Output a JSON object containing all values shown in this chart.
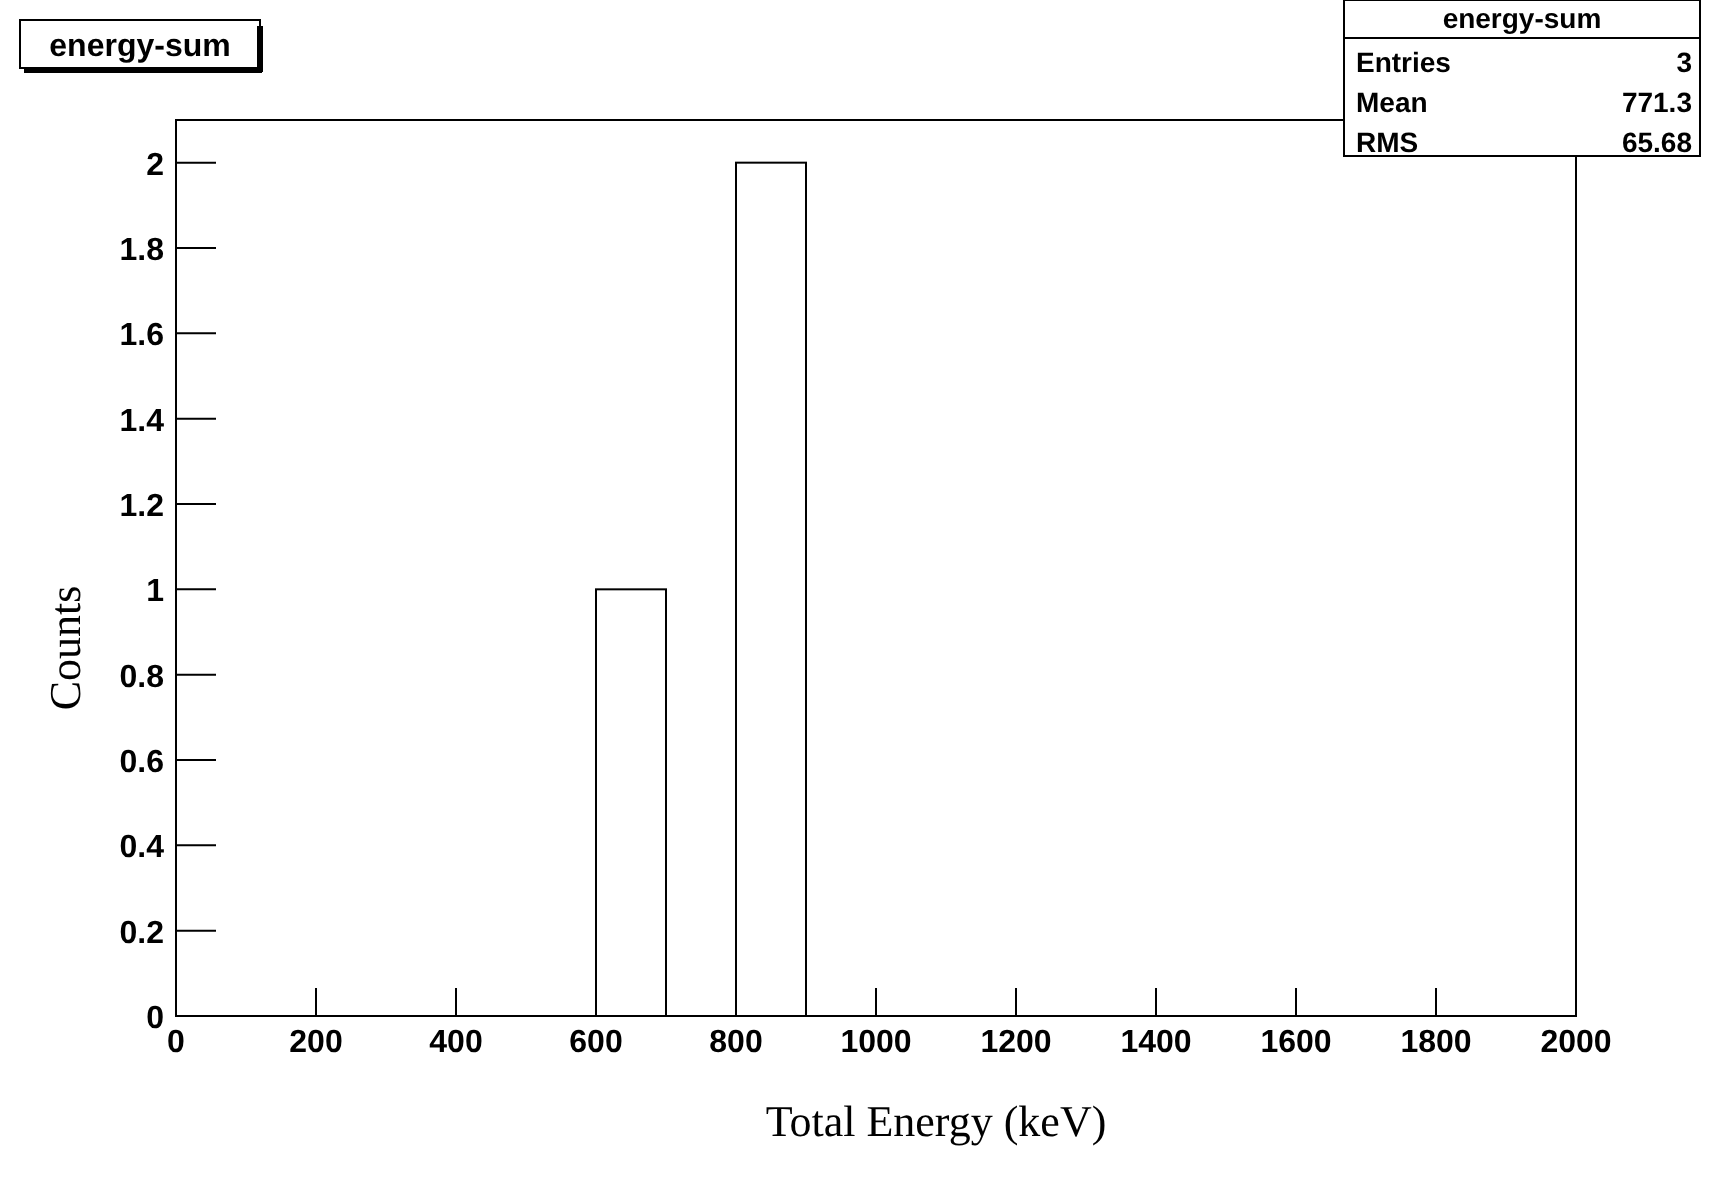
{
  "chart_data": {
    "type": "histogram",
    "title": "energy-sum",
    "xlabel": "Total Energy (keV)",
    "ylabel": "Counts",
    "bins": [
      0,
      100,
      200,
      300,
      400,
      500,
      600,
      700,
      800,
      900,
      1000,
      1100,
      1200,
      1300,
      1400,
      1500,
      1600,
      1700,
      1800,
      1900,
      2000
    ],
    "values": [
      0,
      0,
      0,
      0,
      0,
      0,
      1,
      0,
      2,
      0,
      0,
      0,
      0,
      0,
      0,
      0,
      0,
      0,
      0,
      0
    ],
    "color": "#000000",
    "xlim": [
      0,
      2000
    ],
    "xticks": [
      0,
      200,
      400,
      600,
      800,
      1000,
      1200,
      1400,
      1600,
      1800,
      2000
    ],
    "ylim": [
      0,
      2.1
    ],
    "yticks": [
      0,
      0.2,
      0.4,
      0.6,
      0.8,
      1,
      1.2,
      1.4,
      1.6,
      1.8,
      2
    ],
    "annotations": [
      "energy-sum",
      "Entries",
      "3",
      "Mean",
      "771.3",
      "RMS",
      "65.68"
    ],
    "grid": false
  }
}
